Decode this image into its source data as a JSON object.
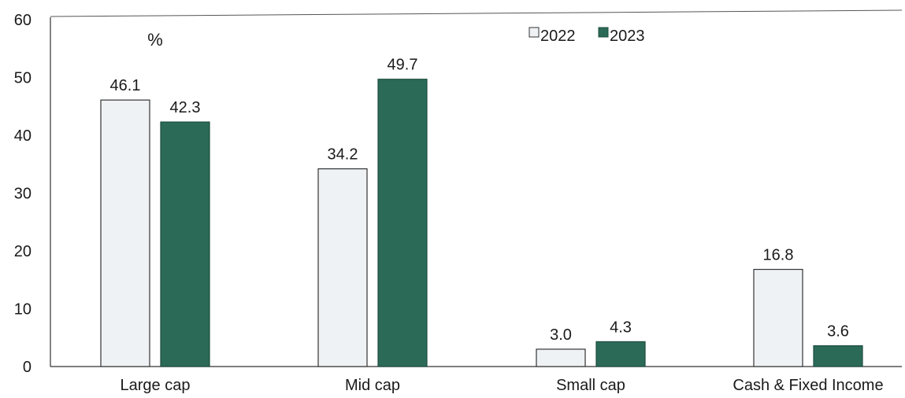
{
  "chart_data": {
    "type": "bar",
    "unit_label": "%",
    "categories": [
      "Large cap",
      "Mid cap",
      "Small cap",
      "Cash & Fixed Income"
    ],
    "series": [
      {
        "name": "2022",
        "color": "#eef2f5",
        "values": [
          46.1,
          34.2,
          3.0,
          16.8
        ],
        "labels": [
          "46.1",
          "34.2",
          "3.0",
          "16.8"
        ]
      },
      {
        "name": "2023",
        "color": "#2b6a57",
        "values": [
          42.3,
          49.7,
          4.3,
          3.6
        ],
        "labels": [
          "42.3",
          "49.7",
          "4.3",
          "3.6"
        ]
      }
    ],
    "ylim": [
      0,
      60
    ],
    "yticks": [
      0,
      10,
      20,
      30,
      40,
      50,
      60
    ],
    "grid": false,
    "legend_position": "top-center"
  }
}
